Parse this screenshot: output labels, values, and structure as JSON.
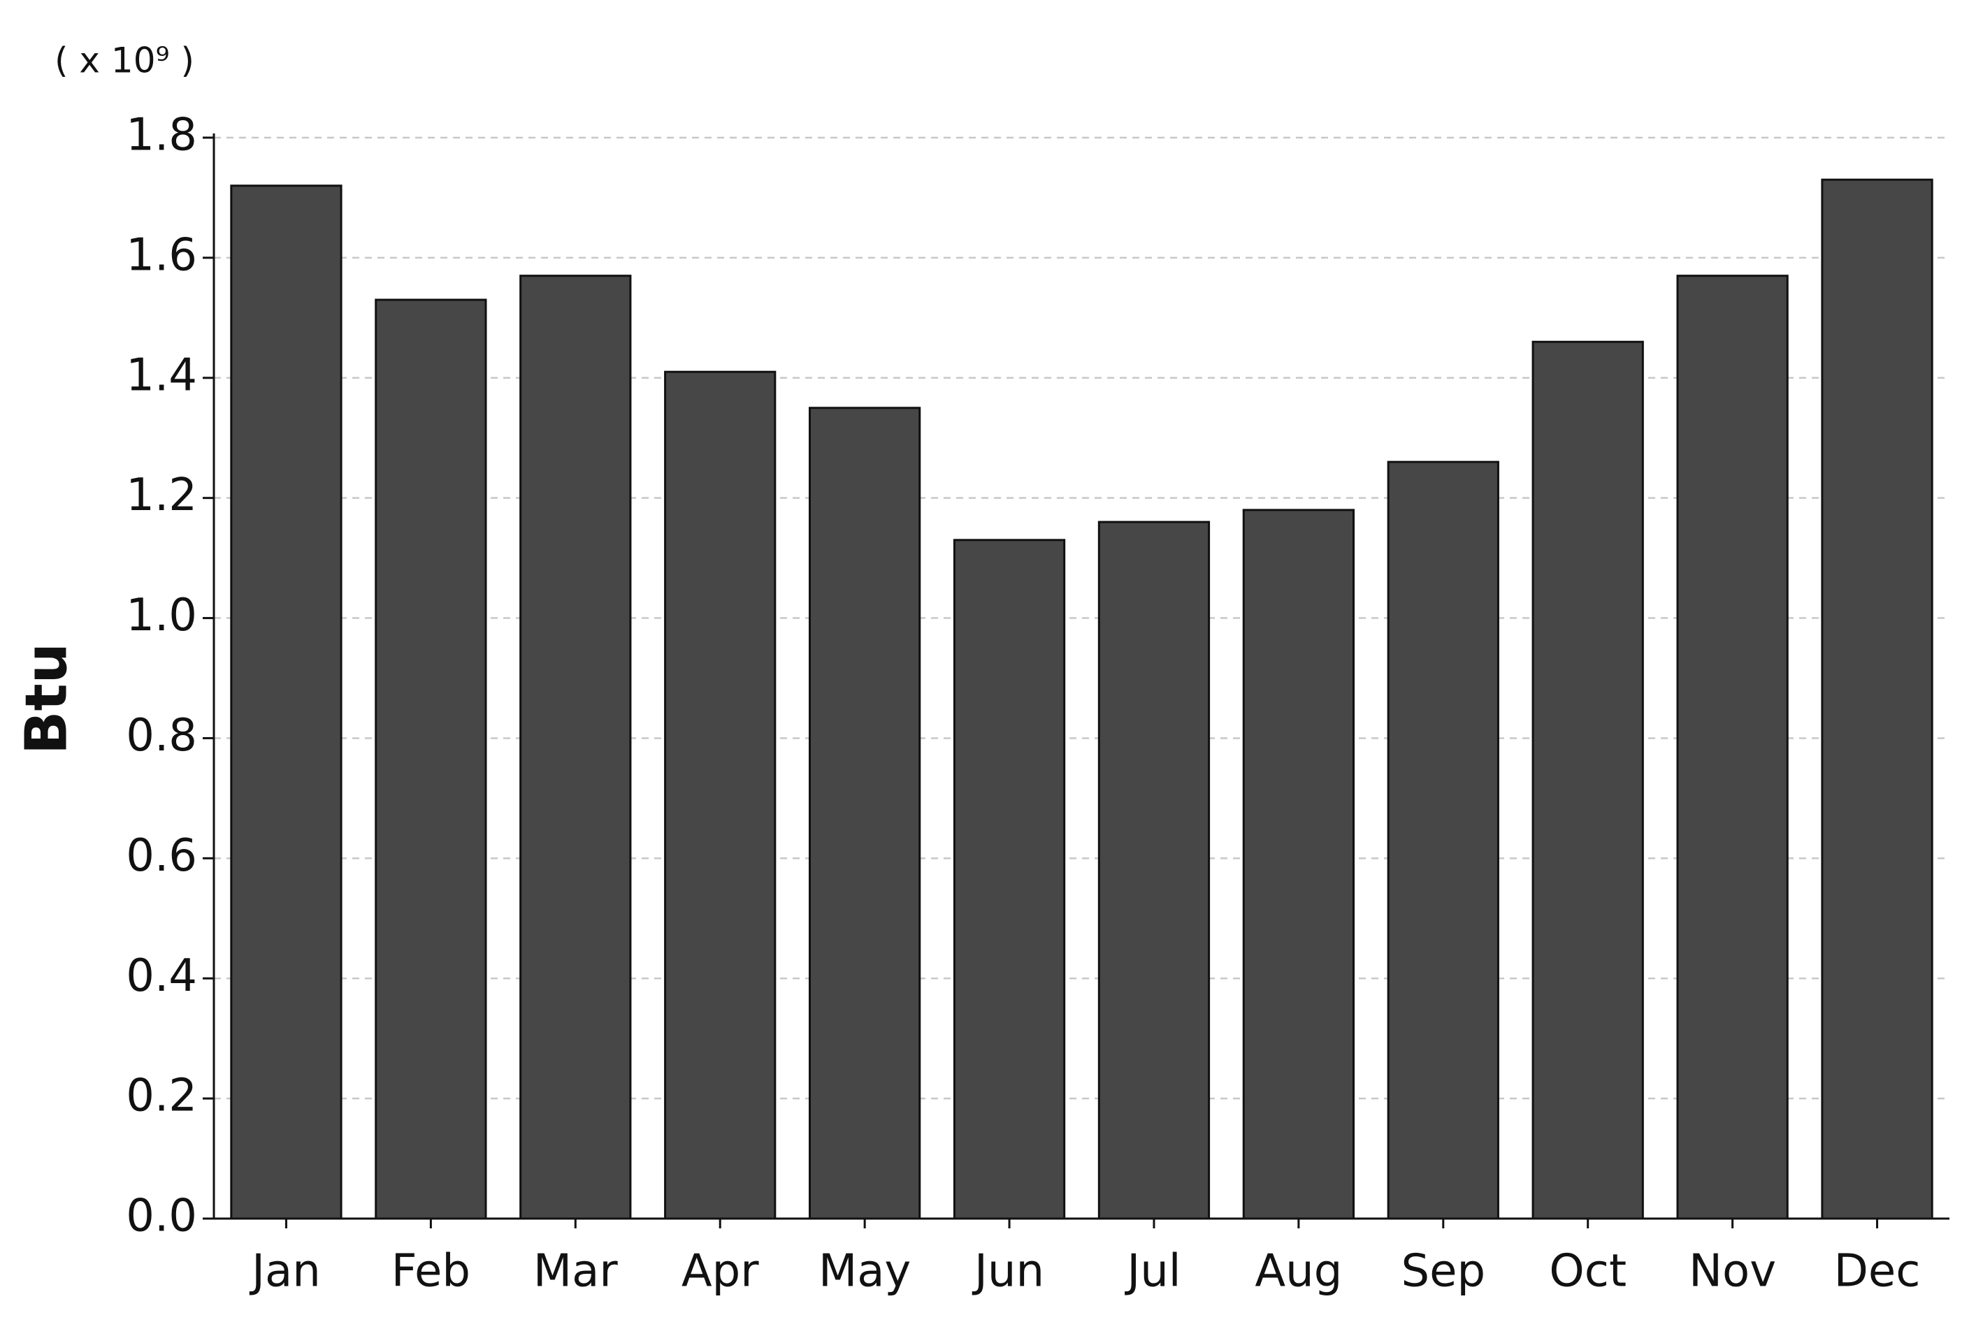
{
  "chart_data": {
    "type": "bar",
    "y_label": "Btu",
    "y_multiplier": "( x 10⁹ )",
    "categories": [
      "Jan",
      "Feb",
      "Mar",
      "Apr",
      "May",
      "Jun",
      "Jul",
      "Aug",
      "Sep",
      "Oct",
      "Nov",
      "Dec"
    ],
    "values": [
      1.72,
      1.53,
      1.57,
      1.41,
      1.35,
      1.13,
      1.16,
      1.18,
      1.26,
      1.46,
      1.57,
      1.73
    ],
    "color": "#474747",
    "ylim": [
      0,
      1.8
    ],
    "yticks": [
      {
        "value": 0,
        "label": "0.0"
      },
      0.2,
      0.4,
      0.6,
      0.8,
      {
        "value": 1,
        "label": "1.0"
      },
      1.2,
      1.4,
      1.6,
      1.8
    ],
    "grid": true
  }
}
